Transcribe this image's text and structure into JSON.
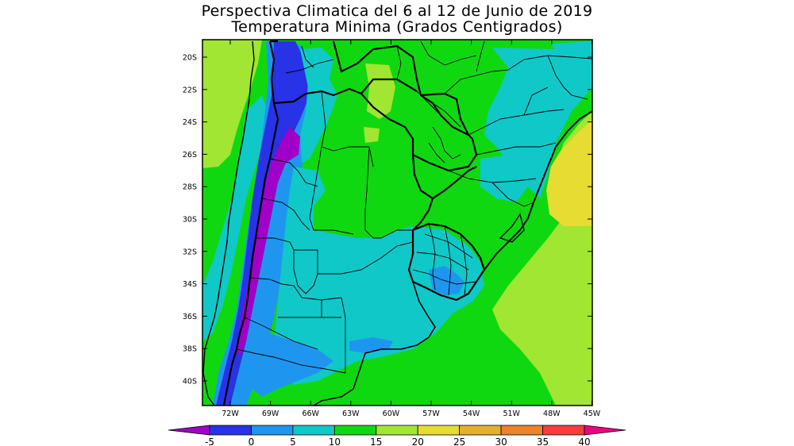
{
  "title": "Perspectiva Climatica del 6 al 12 de Junio de 2019",
  "subtitle": "Temperatura Minima (Grados Centigrados)",
  "lat_labels": [
    "20S",
    "22S",
    "24S",
    "26S",
    "28S",
    "30S",
    "32S",
    "34S",
    "36S",
    "38S",
    "40S"
  ],
  "lon_labels": [
    "72W",
    "69W",
    "66W",
    "63W",
    "60W",
    "57W",
    "54W",
    "51W",
    "48W",
    "45W"
  ],
  "colorbar": {
    "labels": [
      "-5",
      "0",
      "5",
      "10",
      "15",
      "20",
      "25",
      "30",
      "35",
      "40"
    ],
    "colors": [
      "#a000c8",
      "#2832e6",
      "#1e96f0",
      "#10c8c8",
      "#10d810",
      "#a0e632",
      "#e6dc32",
      "#e6af2d",
      "#f08228",
      "#fa3c3c",
      "#f00082"
    ]
  },
  "map_colors": {
    "purple": "#a000c8",
    "blue": "#2832e6",
    "lightblue": "#1e96f0",
    "cyan": "#10c8c8",
    "green": "#10d810",
    "lightgreen": "#a0e632",
    "yellow": "#e6dc32"
  }
}
